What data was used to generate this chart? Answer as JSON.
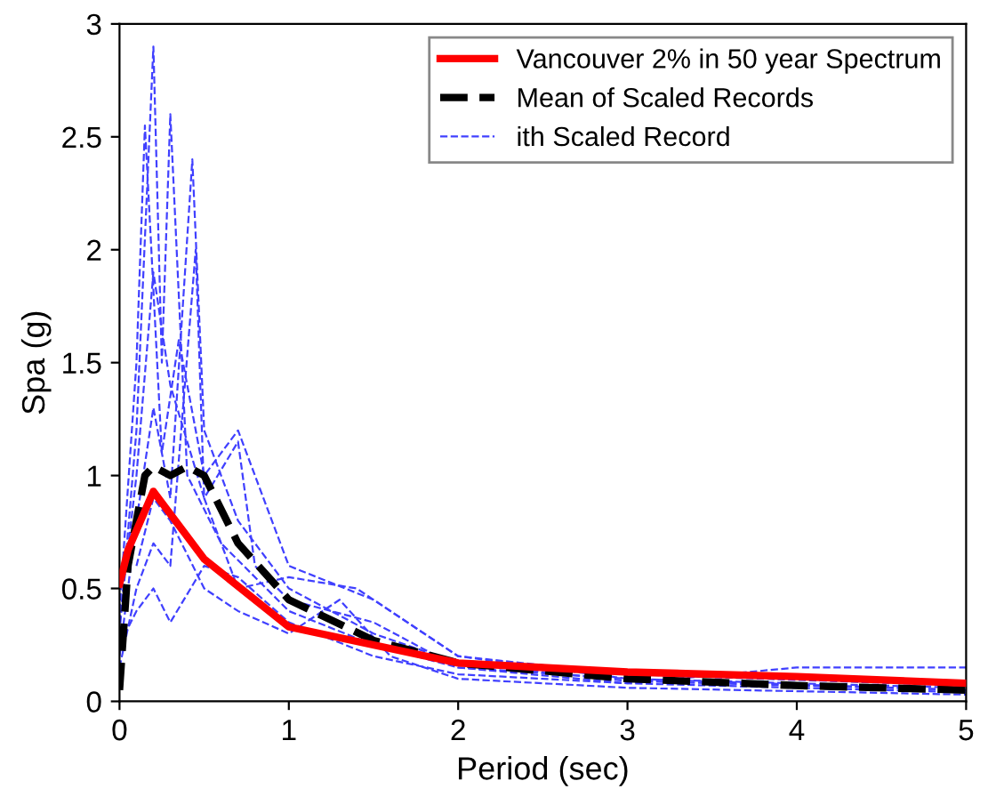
{
  "chart_data": {
    "type": "line",
    "xlabel": "Period (sec)",
    "ylabel": "Spa (g)",
    "xlim": [
      0,
      5
    ],
    "ylim": [
      0,
      3
    ],
    "xticks": [
      0,
      1,
      2,
      3,
      4,
      5
    ],
    "yticks": [
      0,
      0.5,
      1,
      1.5,
      2,
      2.5,
      3
    ],
    "grid": false,
    "legend": "top right",
    "series": [
      {
        "name": "Vancouver 2% in 50 year Spectrum",
        "color": "#ff0000",
        "line_style": "solid",
        "x": [
          0,
          0.05,
          0.2,
          0.5,
          1.0,
          2.0,
          3.0,
          4.0,
          5.0
        ],
        "values": [
          0.52,
          0.67,
          0.93,
          0.63,
          0.33,
          0.17,
          0.13,
          0.11,
          0.08
        ]
      },
      {
        "name": "Mean of Scaled Records",
        "color": "#000000",
        "line_style": "dashed",
        "x": [
          0,
          0.05,
          0.15,
          0.2,
          0.3,
          0.4,
          0.5,
          0.7,
          1.0,
          1.5,
          2.0,
          3.0,
          4.0,
          5.0
        ],
        "values": [
          0.05,
          0.6,
          1.0,
          1.04,
          1.0,
          1.04,
          1.0,
          0.7,
          0.45,
          0.27,
          0.17,
          0.1,
          0.07,
          0.05
        ]
      },
      {
        "name": "ith Scaled Record",
        "color": "#4040ff",
        "line_style": "dashed",
        "x": [
          0,
          0.1,
          0.2,
          0.25,
          0.3,
          0.4,
          0.6,
          1.0,
          1.5,
          2.0,
          3.0,
          5.0
        ],
        "values": [
          0.3,
          1.2,
          2.9,
          1.5,
          2.6,
          1.0,
          0.7,
          0.4,
          0.25,
          0.15,
          0.08,
          0.04
        ]
      },
      {
        "color": "#4040ff",
        "line_style": "dashed",
        "x": [
          0,
          0.1,
          0.2,
          0.3,
          0.43,
          0.5,
          0.7,
          1.0,
          1.5,
          2.0,
          3.0,
          5.0
        ],
        "values": [
          0.2,
          0.8,
          1.3,
          0.9,
          2.4,
          1.2,
          0.8,
          0.5,
          0.3,
          0.17,
          0.09,
          0.05
        ]
      },
      {
        "color": "#4040ff",
        "line_style": "dashed",
        "x": [
          0,
          0.1,
          0.15,
          0.25,
          0.35,
          0.5,
          0.7,
          1.0,
          1.5,
          2.0,
          3.0,
          5.0
        ],
        "values": [
          0.4,
          1.5,
          2.55,
          1.1,
          1.6,
          1.0,
          1.2,
          0.6,
          0.45,
          0.2,
          0.1,
          0.06
        ]
      },
      {
        "color": "#4040ff",
        "line_style": "dashed",
        "x": [
          0,
          0.1,
          0.2,
          0.3,
          0.45,
          0.5,
          0.7,
          1.0,
          1.4,
          2.0,
          3.0,
          5.0
        ],
        "values": [
          0.15,
          0.5,
          0.7,
          0.6,
          2.0,
          0.9,
          0.5,
          0.55,
          0.5,
          0.2,
          0.12,
          0.07
        ]
      },
      {
        "color": "#4040ff",
        "line_style": "dashed",
        "x": [
          0,
          0.1,
          0.2,
          0.3,
          0.5,
          0.7,
          1.0,
          1.5,
          2.0,
          3.0,
          4.0,
          5.0
        ],
        "values": [
          0.25,
          0.4,
          0.5,
          0.35,
          0.6,
          0.55,
          0.35,
          0.2,
          0.12,
          0.08,
          0.15,
          0.15
        ]
      },
      {
        "color": "#4040ff",
        "line_style": "dashed",
        "x": [
          0,
          0.1,
          0.2,
          0.3,
          0.5,
          0.7,
          0.8,
          1.0,
          1.5,
          2.0,
          3.0,
          5.0
        ],
        "values": [
          0.35,
          1.0,
          1.9,
          1.4,
          0.9,
          1.15,
          0.6,
          0.45,
          0.35,
          0.15,
          0.1,
          0.05
        ]
      },
      {
        "color": "#4040ff",
        "line_style": "dashed",
        "x": [
          0.1,
          0.2,
          0.3,
          0.5,
          0.7,
          1.0,
          1.3,
          1.6,
          2.0,
          3.0,
          5.0
        ],
        "values": [
          0.6,
          0.9,
          0.8,
          0.5,
          0.4,
          0.3,
          0.45,
          0.2,
          0.1,
          0.06,
          0.03
        ]
      }
    ]
  }
}
